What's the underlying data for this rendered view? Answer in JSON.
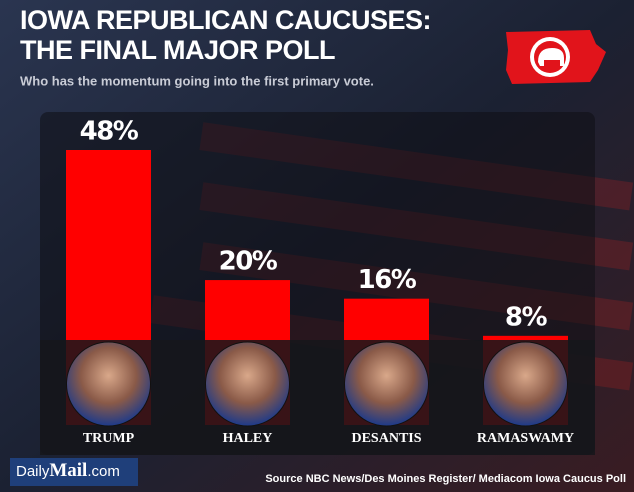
{
  "chart_data": {
    "type": "bar",
    "title": [
      "IOWA REPUBLICAN CAUCUSES:",
      "THE FINAL MAJOR POLL"
    ],
    "subtitle": "Who has the momentum going into the first primary vote.",
    "categories": [
      "TRUMP",
      "HALEY",
      "DESANTIS",
      "RAMASWAMY"
    ],
    "values": [
      48,
      20,
      16,
      8
    ],
    "value_labels": [
      "48%",
      "20%",
      "16%",
      "8%"
    ],
    "color": "#ff0000",
    "source": "Source NBC News/Des Moines Register/ Mediacom Iowa Caucus Poll",
    "logo": [
      "Daily",
      "Mail",
      ".com"
    ]
  }
}
